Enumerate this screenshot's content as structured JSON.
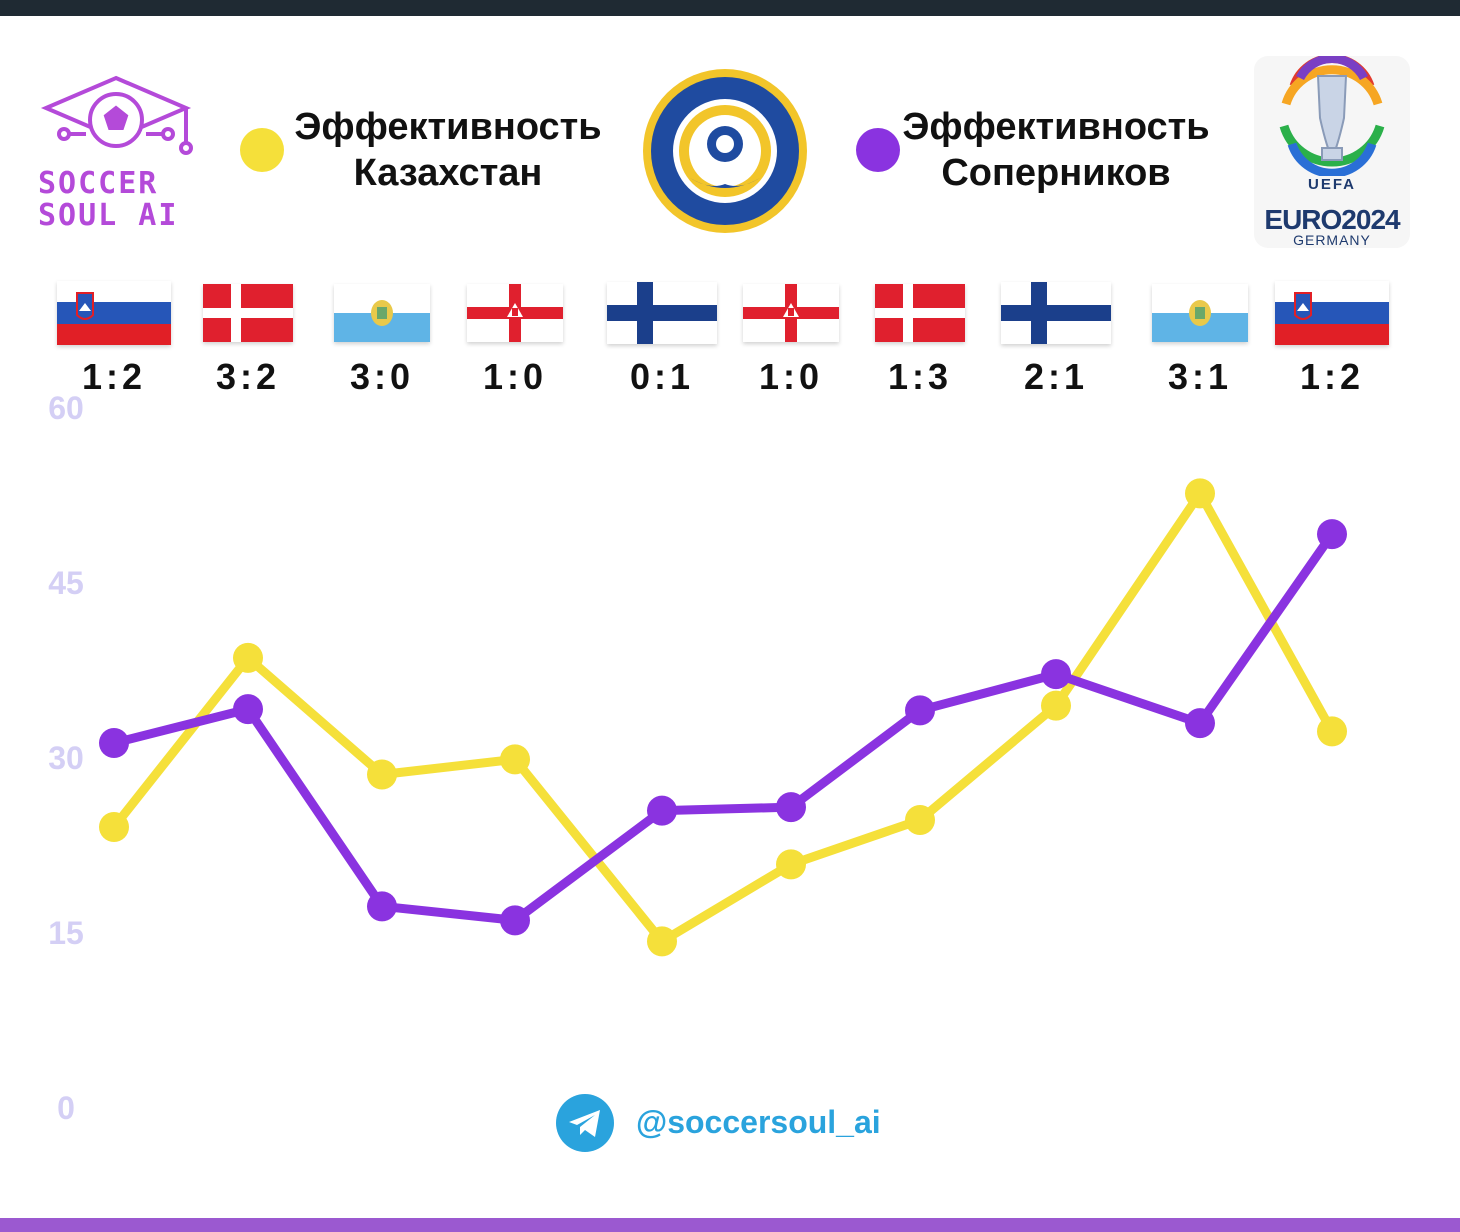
{
  "brand": {
    "line1": "SOCCER",
    "line2": "SOUL AI"
  },
  "legend": [
    {
      "line1": "Эффективность",
      "line2": "Казахстан",
      "color": "#f5e03a"
    },
    {
      "line1": "Эффективность",
      "line2": "Соперников",
      "color": "#8a33e0"
    }
  ],
  "euro_badge": {
    "uefa": "UEFA",
    "title": "EURO2024",
    "sub": "GERMANY"
  },
  "matches": [
    {
      "opponent_flag": "slovenia-flag",
      "score": "1:2"
    },
    {
      "opponent_flag": "denmark-flag",
      "score": "3:2"
    },
    {
      "opponent_flag": "san-marino-flag",
      "score": "3:0"
    },
    {
      "opponent_flag": "northern-ireland-flag",
      "score": "1:0"
    },
    {
      "opponent_flag": "finland-flag",
      "score": "0:1"
    },
    {
      "opponent_flag": "northern-ireland-flag",
      "score": "1:0"
    },
    {
      "opponent_flag": "denmark-flag",
      "score": "1:3"
    },
    {
      "opponent_flag": "finland-flag",
      "score": "2:1"
    },
    {
      "opponent_flag": "san-marino-flag",
      "score": "3:1"
    },
    {
      "opponent_flag": "slovenia-flag",
      "score": "1:2"
    }
  ],
  "chart_data": {
    "type": "line",
    "x": [
      1,
      2,
      3,
      4,
      5,
      6,
      7,
      8,
      9,
      10
    ],
    "ylim": [
      0,
      60
    ],
    "yticks": [
      "0",
      "15",
      "30",
      "45",
      "60"
    ],
    "grid": false,
    "legend": "top",
    "series": [
      {
        "name": "Эффективность Казахстан",
        "color": "#f5e03a",
        "values": [
          24.0,
          38.5,
          28.5,
          29.8,
          14.2,
          20.8,
          24.6,
          34.4,
          52.6,
          32.2
        ]
      },
      {
        "name": "Эффективность Соперников",
        "color": "#8a33e0",
        "values": [
          31.2,
          34.1,
          17.2,
          16.0,
          25.4,
          25.7,
          34.0,
          37.1,
          32.9,
          49.1
        ]
      }
    ]
  },
  "footer": {
    "handle": "@soccersoul_ai",
    "icon": "telegram-icon"
  }
}
